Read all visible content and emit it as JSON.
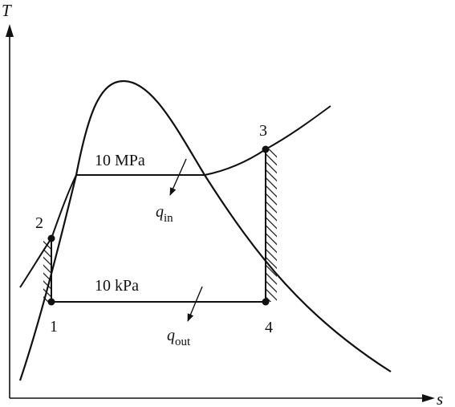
{
  "axes": {
    "y_label": "T",
    "x_label": "s"
  },
  "states": [
    {
      "id": "1",
      "label": "1"
    },
    {
      "id": "2",
      "label": "2"
    },
    {
      "id": "3",
      "label": "3"
    },
    {
      "id": "4",
      "label": "4"
    }
  ],
  "pressures": {
    "high": "10 MPa",
    "low": "10 kPa"
  },
  "heat": {
    "in_symbol": "q",
    "in_sub": "in",
    "out_symbol": "q",
    "out_sub": "out"
  }
}
